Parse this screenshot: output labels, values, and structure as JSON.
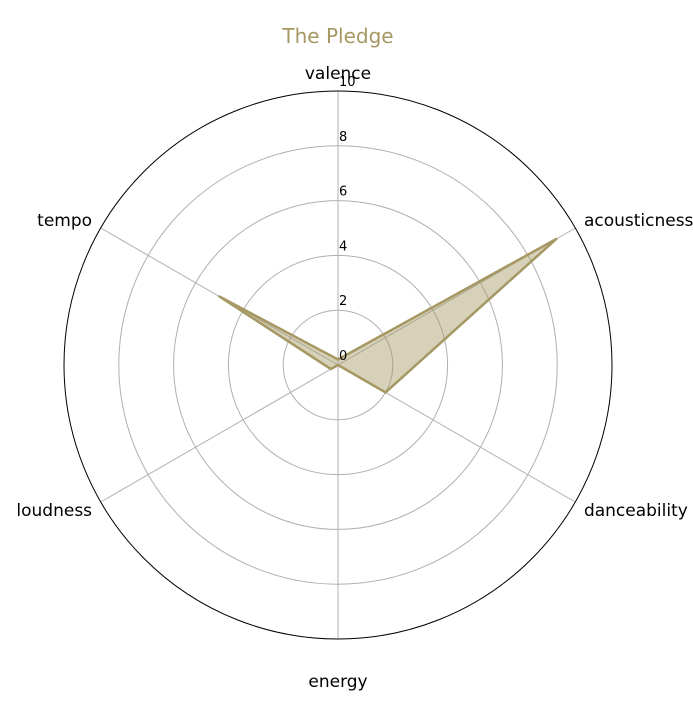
{
  "chart_data": {
    "type": "radar",
    "title": "The Pledge",
    "axes": [
      "valence",
      "acousticness",
      "danceability",
      "energy",
      "loudness",
      "tempo"
    ],
    "series": [
      {
        "values": [
          0.2,
          9.2,
          2.0,
          0.0,
          0.3,
          5.0
        ]
      }
    ],
    "rlim": [
      0,
      10
    ],
    "rticks": [
      "0",
      "2",
      "4",
      "6",
      "8",
      "10"
    ],
    "grid": true,
    "colors": {
      "title": "#a69863",
      "series": "#a69863",
      "fill": "#d8d3bd",
      "grid": "#b0b0b0",
      "frame": "#000000"
    }
  }
}
